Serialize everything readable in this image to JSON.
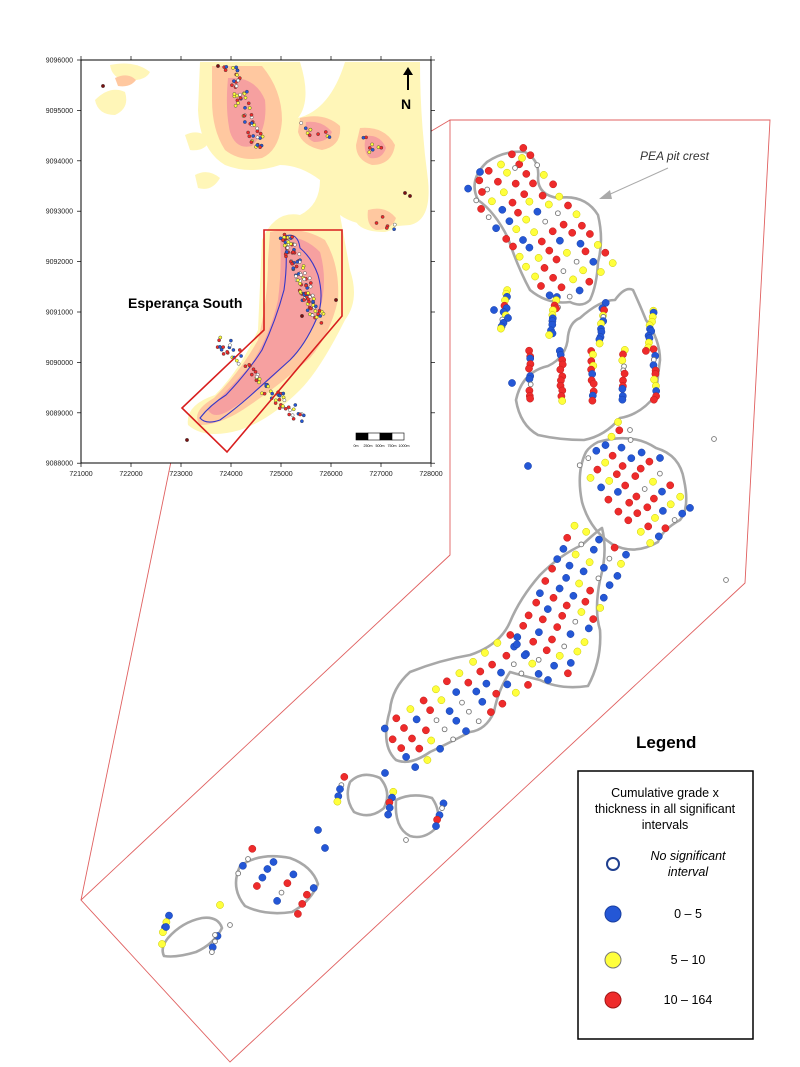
{
  "inset": {
    "area_label": "Esperança South",
    "north_label": "N",
    "y_ticks": [
      "9096000",
      "9095000",
      "9094000",
      "9093000",
      "9092000",
      "9091000",
      "9090000",
      "9089000",
      "9088000"
    ],
    "x_ticks": [
      "721000",
      "722000",
      "723000",
      "724000",
      "725000",
      "726000",
      "727000",
      "728000"
    ],
    "scale_labels": [
      "0m",
      "250m",
      "500m",
      "750m",
      "1000m"
    ]
  },
  "annotation": {
    "pit_label": "PEA pit crest"
  },
  "legend": {
    "title": "Legend",
    "heading": "Cumulative grade x thickness in all significant intervals",
    "heading_lines": [
      "Cumulative grade x",
      "thickness in all significant",
      "intervals"
    ],
    "items": [
      {
        "label": "No significant interval",
        "lines": [
          "No significant",
          "interval"
        ],
        "italic": true,
        "fill": "#ffffff",
        "stroke": "#1f3f8f"
      },
      {
        "label": "0 – 5",
        "lines": [
          "0 – 5"
        ],
        "italic": false,
        "fill": "#2457d6",
        "stroke": "#1a3fa0"
      },
      {
        "label": "5 – 10",
        "lines": [
          "5 – 10"
        ],
        "italic": false,
        "fill": "#ffff3c",
        "stroke": "#777777"
      },
      {
        "label": "10 – 164",
        "lines": [
          "10 – 164"
        ],
        "italic": false,
        "fill": "#ee2b2b",
        "stroke": "#a01515"
      }
    ]
  },
  "colors": {
    "blue": "#2457d6",
    "yellow": "#ffff3c",
    "red": "#ee2b2b",
    "hollow_stroke": "#777777",
    "pit_outline": "#a8a8a8",
    "callout_frame": "#e06060",
    "heat_light": "#fff6b8",
    "heat_mid": "#ffc8a0",
    "heat_high": "#f6a0a0"
  }
}
